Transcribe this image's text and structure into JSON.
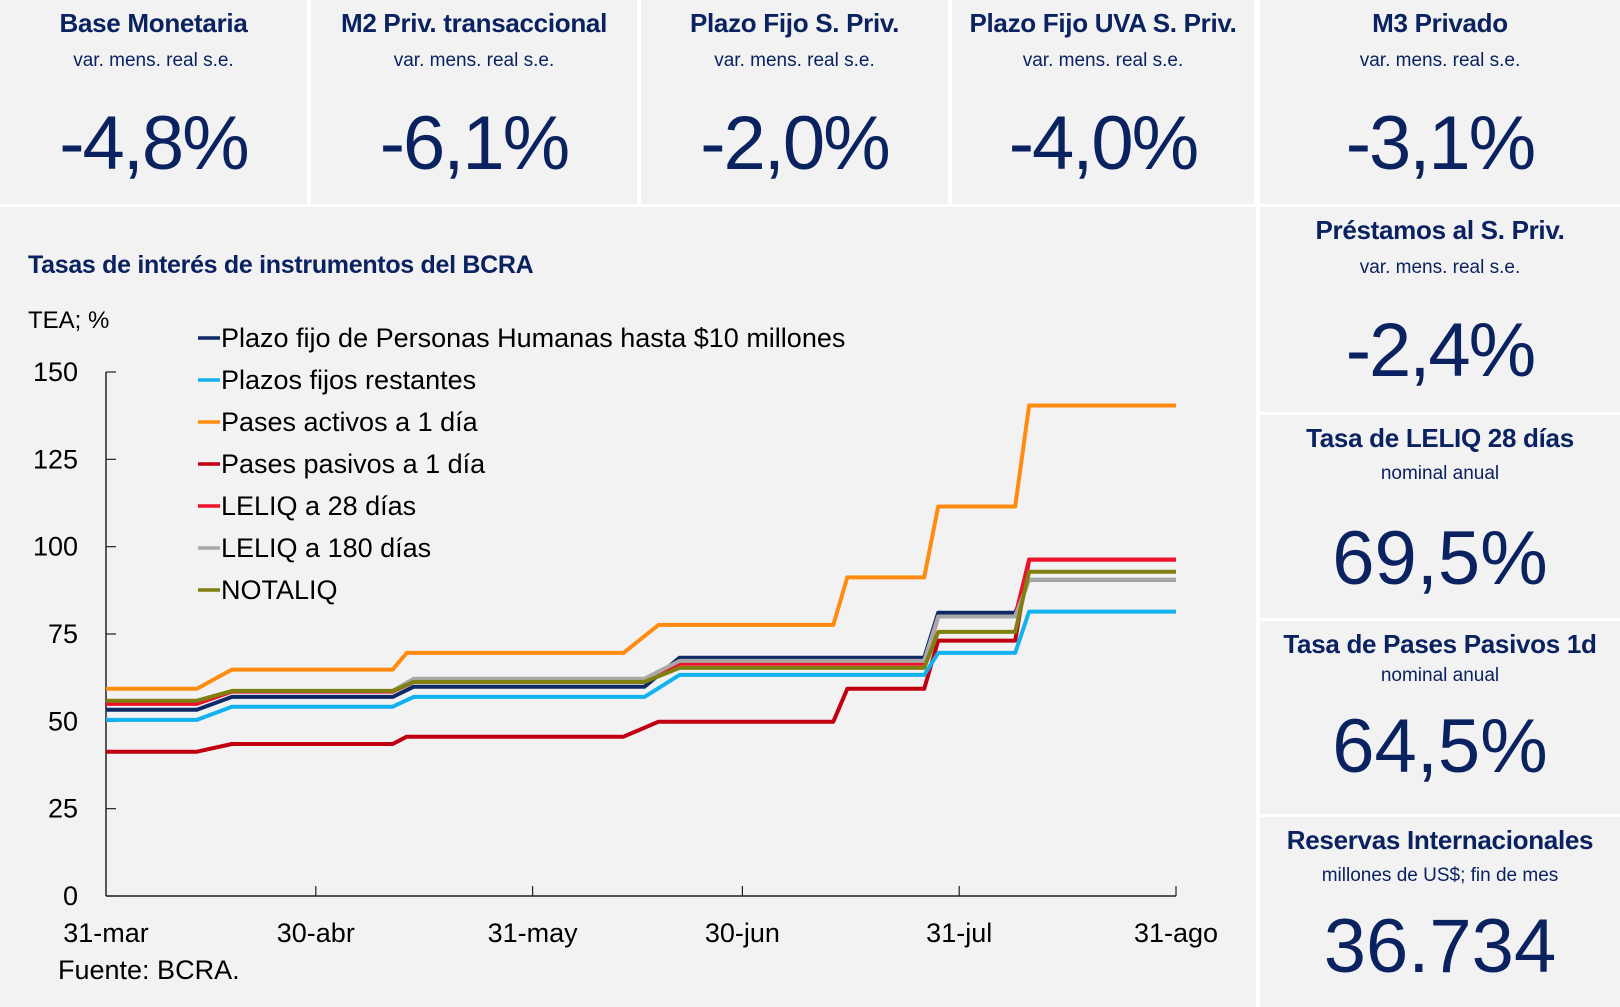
{
  "kpis_top": [
    {
      "title": "Base Monetaria",
      "subtitle": "var. mens. real s.e.",
      "value": "-4,8%"
    },
    {
      "title": "M2 Priv. transaccional",
      "subtitle": "var. mens. real s.e.",
      "value": "-6,1%"
    },
    {
      "title": "Plazo Fijo S. Priv.",
      "subtitle": "var. mens. real s.e.",
      "value": "-2,0%"
    },
    {
      "title": "Plazo Fijo UVA S. Priv.",
      "subtitle": "var. mens. real s.e.",
      "value": "-4,0%"
    },
    {
      "title": "M3 Privado",
      "subtitle": "var. mens. real s.e.",
      "value": "-3,1%"
    }
  ],
  "kpis_side": [
    {
      "title": "Préstamos al S. Priv.",
      "subtitle": "var. mens. real s.e.",
      "value": "-2,4%"
    },
    {
      "title": "Tasa de LELIQ 28 días",
      "subtitle": "nominal anual",
      "value": "69,5%"
    },
    {
      "title": "Tasa de Pases Pasivos 1d",
      "subtitle": "nominal anual",
      "value": "64,5%"
    },
    {
      "title": "Reservas Internacionales",
      "subtitle": "millones de US$; fin de mes",
      "value": "36.734"
    }
  ],
  "chart_data": {
    "type": "line",
    "title": "Tasas de interés de instrumentos del BCRA",
    "ylabel": "TEA; %",
    "xlabel": "",
    "source": "Fuente: BCRA.",
    "ylim": [
      0,
      150
    ],
    "yticks": [
      0,
      25,
      50,
      75,
      100,
      125,
      150
    ],
    "xlim_days": [
      0,
      153
    ],
    "xticks": [
      {
        "day": 0,
        "label": "31-mar"
      },
      {
        "day": 30,
        "label": "30-abr"
      },
      {
        "day": 61,
        "label": "31-may"
      },
      {
        "day": 91,
        "label": "30-jun"
      },
      {
        "day": 122,
        "label": "31-jul"
      },
      {
        "day": 153,
        "label": "31-ago"
      }
    ],
    "legend_position": "top-left",
    "x_unit": "days since 31-mar",
    "series": [
      {
        "name": "Plazo fijo de Personas Humanas hasta $10 millones",
        "color": "#0d2a66",
        "points": [
          [
            0,
            53.3
          ],
          [
            13,
            53.3
          ],
          [
            18,
            57
          ],
          [
            41,
            57
          ],
          [
            44,
            59.9
          ],
          [
            77,
            59.9
          ],
          [
            82,
            68.2
          ],
          [
            117,
            68.2
          ],
          [
            119,
            81.1
          ],
          [
            130,
            81.1
          ],
          [
            132,
            90.5
          ],
          [
            153,
            90.5
          ]
        ]
      },
      {
        "name": "Plazos fijos restantes",
        "color": "#12b2ee",
        "points": [
          [
            0,
            50.4
          ],
          [
            13,
            50.4
          ],
          [
            18,
            54.2
          ],
          [
            41,
            54.2
          ],
          [
            44,
            57
          ],
          [
            77,
            57
          ],
          [
            82,
            63.3
          ],
          [
            117,
            63.3
          ],
          [
            119,
            69.6
          ],
          [
            130,
            69.6
          ],
          [
            132,
            81.4
          ],
          [
            153,
            81.4
          ]
        ]
      },
      {
        "name": "Pases activos a 1 día",
        "color": "#ff8c10",
        "points": [
          [
            0,
            59.3
          ],
          [
            13,
            59.3
          ],
          [
            18,
            64.8
          ],
          [
            41,
            64.8
          ],
          [
            43,
            69.6
          ],
          [
            74,
            69.6
          ],
          [
            79,
            77.6
          ],
          [
            104,
            77.6
          ],
          [
            106,
            91.2
          ],
          [
            117,
            91.2
          ],
          [
            119,
            111.5
          ],
          [
            130,
            111.5
          ],
          [
            132,
            140.4
          ],
          [
            153,
            140.4
          ]
        ]
      },
      {
        "name": "Pases pasivos a 1 día",
        "color": "#c00010",
        "points": [
          [
            0,
            41.3
          ],
          [
            13,
            41.3
          ],
          [
            18,
            43.5
          ],
          [
            41,
            43.5
          ],
          [
            43,
            45.6
          ],
          [
            74,
            45.6
          ],
          [
            79,
            49.9
          ],
          [
            104,
            49.9
          ],
          [
            106,
            59.3
          ],
          [
            117,
            59.3
          ],
          [
            119,
            73.1
          ],
          [
            130,
            73.1
          ],
          [
            132,
            96.3
          ],
          [
            153,
            96.3
          ]
        ]
      },
      {
        "name": "LELIQ a 28 días",
        "color": "#f0102a",
        "points": [
          [
            0,
            55
          ],
          [
            13,
            55
          ],
          [
            18,
            58.5
          ],
          [
            41,
            58.5
          ],
          [
            44,
            61.3
          ],
          [
            77,
            61.3
          ],
          [
            82,
            66.5
          ],
          [
            117,
            66.5
          ],
          [
            119,
            80
          ],
          [
            130,
            80
          ],
          [
            132,
            96.3
          ],
          [
            153,
            96.3
          ]
        ]
      },
      {
        "name": "LELIQ a 180 días",
        "color": "#a8a8a8",
        "points": [
          [
            41,
            58.7
          ],
          [
            44,
            62.2
          ],
          [
            77,
            62.2
          ],
          [
            82,
            67.3
          ],
          [
            117,
            67.3
          ],
          [
            119,
            80
          ],
          [
            130,
            80
          ],
          [
            132,
            90.5
          ],
          [
            153,
            90.5
          ]
        ]
      },
      {
        "name": "NOTALIQ",
        "color": "#808010",
        "points": [
          [
            0,
            55.9
          ],
          [
            13,
            55.9
          ],
          [
            18,
            58.7
          ],
          [
            41,
            58.7
          ],
          [
            44,
            61.3
          ],
          [
            77,
            61.3
          ],
          [
            82,
            65.3
          ],
          [
            117,
            65.3
          ],
          [
            119,
            75.6
          ],
          [
            130,
            75.6
          ],
          [
            132,
            92.8
          ],
          [
            153,
            92.8
          ]
        ]
      }
    ]
  }
}
